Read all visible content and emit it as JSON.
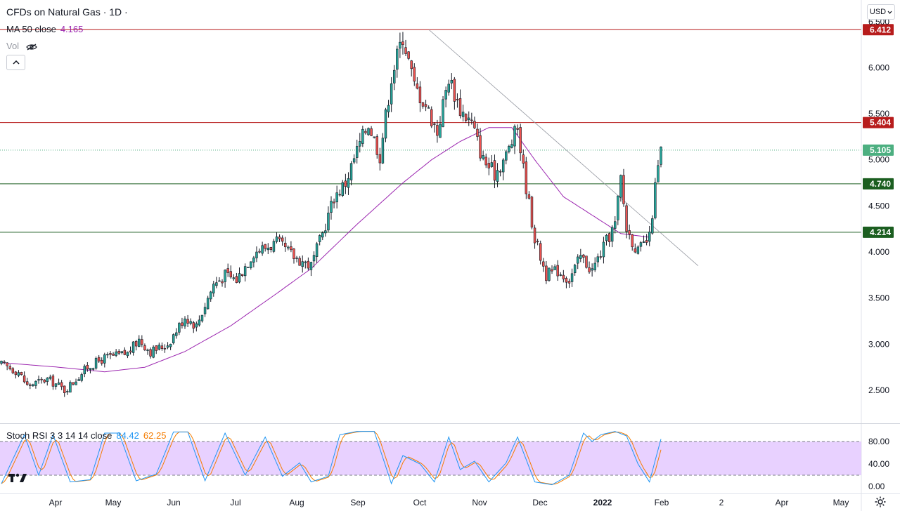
{
  "header": {
    "title": "CFDs on Natural Gas · 1D ·",
    "ma_label": "MA 50 close",
    "ma_value": "4.165",
    "vol_label": "Vol"
  },
  "currency": "USD",
  "price_axis": {
    "ticks": [
      "6.500",
      "6.000",
      "5.500",
      "5.000",
      "4.500",
      "4.000",
      "3.500",
      "3.000",
      "2.500"
    ],
    "range": [
      2.18,
      6.62
    ]
  },
  "horizontal_levels": [
    {
      "value": 6.412,
      "label": "6.412",
      "color": "#b71c1c"
    },
    {
      "value": 5.404,
      "label": "5.404",
      "color": "#b71c1c"
    },
    {
      "value": 4.74,
      "label": "4.740",
      "color": "#1b5e20"
    },
    {
      "value": 4.214,
      "label": "4.214",
      "color": "#1b5e20"
    }
  ],
  "last_price": {
    "value": 5.105,
    "label": "5.105",
    "color": "#4caf80"
  },
  "trendline": {
    "from": [
      6.412,
      "Oct"
    ],
    "to": [
      3.85,
      "Feb"
    ]
  },
  "time_axis": {
    "labels": [
      "Apr",
      "May",
      "Jun",
      "Jul",
      "Aug",
      "Sep",
      "Oct",
      "Nov",
      "Dec",
      "2022",
      "Feb",
      "2",
      "Apr",
      "May"
    ]
  },
  "chart_data": {
    "type": "candlestick",
    "symbol": "CFDs on Natural Gas",
    "interval": "1D",
    "close_path_waypoints": [
      [
        0,
        2.78
      ],
      [
        6,
        2.7
      ],
      [
        9,
        2.55
      ],
      [
        12,
        2.58
      ],
      [
        16,
        2.62
      ],
      [
        20,
        2.55
      ],
      [
        22,
        2.5
      ],
      [
        26,
        2.62
      ],
      [
        30,
        2.75
      ],
      [
        36,
        2.85
      ],
      [
        44,
        2.9
      ],
      [
        48,
        3.05
      ],
      [
        52,
        2.92
      ],
      [
        58,
        3.0
      ],
      [
        64,
        3.3
      ],
      [
        68,
        3.2
      ],
      [
        74,
        3.65
      ],
      [
        78,
        3.75
      ],
      [
        82,
        3.7
      ],
      [
        88,
        4.0
      ],
      [
        96,
        4.1
      ],
      [
        102,
        3.95
      ],
      [
        108,
        3.85
      ],
      [
        112,
        4.2
      ],
      [
        116,
        4.6
      ],
      [
        120,
        4.75
      ],
      [
        124,
        5.1
      ],
      [
        128,
        5.4
      ],
      [
        132,
        5.05
      ],
      [
        136,
        5.9
      ],
      [
        140,
        6.35
      ],
      [
        144,
        5.8
      ],
      [
        148,
        5.6
      ],
      [
        152,
        5.3
      ],
      [
        156,
        5.9
      ],
      [
        160,
        5.55
      ],
      [
        164,
        5.4
      ],
      [
        168,
        5.0
      ],
      [
        172,
        4.85
      ],
      [
        176,
        5.05
      ],
      [
        180,
        5.35
      ],
      [
        182,
        4.9
      ],
      [
        186,
        4.15
      ],
      [
        190,
        3.75
      ],
      [
        194,
        3.8
      ],
      [
        198,
        3.7
      ],
      [
        202,
        3.95
      ],
      [
        206,
        3.8
      ],
      [
        210,
        4.05
      ],
      [
        214,
        4.3
      ],
      [
        216,
        4.8
      ],
      [
        218,
        4.25
      ],
      [
        222,
        4.0
      ],
      [
        226,
        4.15
      ],
      [
        228,
        4.7
      ],
      [
        230,
        5.1
      ]
    ],
    "ma50_waypoints": [
      [
        0,
        2.8
      ],
      [
        20,
        2.75
      ],
      [
        36,
        2.7
      ],
      [
        50,
        2.75
      ],
      [
        64,
        2.92
      ],
      [
        80,
        3.2
      ],
      [
        96,
        3.55
      ],
      [
        108,
        3.82
      ],
      [
        124,
        4.3
      ],
      [
        140,
        4.75
      ],
      [
        150,
        5.0
      ],
      [
        160,
        5.2
      ],
      [
        170,
        5.35
      ],
      [
        178,
        5.35
      ],
      [
        186,
        5.0
      ],
      [
        196,
        4.6
      ],
      [
        206,
        4.4
      ],
      [
        216,
        4.2
      ],
      [
        226,
        4.16
      ]
    ],
    "total_bars": 231,
    "indicator": {
      "name": "Stoch RSI",
      "params": "3 3 14 14 close",
      "k_value": "84.42",
      "d_value": "62.25",
      "band_upper": 80,
      "band_lower": 20,
      "ticks": [
        "80.00",
        "40.00",
        "0.00"
      ],
      "k_waypoints": [
        [
          0,
          5
        ],
        [
          8,
          92
        ],
        [
          13,
          20
        ],
        [
          18,
          92
        ],
        [
          24,
          8
        ],
        [
          31,
          12
        ],
        [
          36,
          95
        ],
        [
          41,
          95
        ],
        [
          47,
          10
        ],
        [
          54,
          22
        ],
        [
          60,
          97
        ],
        [
          65,
          97
        ],
        [
          71,
          10
        ],
        [
          78,
          95
        ],
        [
          85,
          20
        ],
        [
          92,
          88
        ],
        [
          98,
          18
        ],
        [
          104,
          42
        ],
        [
          108,
          8
        ],
        [
          114,
          18
        ],
        [
          118,
          92
        ],
        [
          124,
          98
        ],
        [
          130,
          98
        ],
        [
          136,
          5
        ],
        [
          140,
          55
        ],
        [
          146,
          40
        ],
        [
          151,
          8
        ],
        [
          156,
          88
        ],
        [
          160,
          30
        ],
        [
          165,
          45
        ],
        [
          170,
          8
        ],
        [
          176,
          42
        ],
        [
          180,
          88
        ],
        [
          186,
          8
        ],
        [
          192,
          3
        ],
        [
          198,
          20
        ],
        [
          203,
          95
        ],
        [
          206,
          80
        ],
        [
          209,
          92
        ],
        [
          214,
          98
        ],
        [
          218,
          90
        ],
        [
          222,
          40
        ],
        [
          226,
          8
        ],
        [
          230,
          84.42
        ]
      ]
    }
  },
  "colors": {
    "up": "#26a69a",
    "down": "#ef5350",
    "ma": "#9c27b0",
    "stoch_k": "#2196f3",
    "stoch_d": "#f57c00",
    "stoch_band": "#e6ccff"
  },
  "icons": {
    "eye": "eye-off-icon",
    "collapse": "chevron-up-icon",
    "settings": "gear-icon",
    "logo": "tradingview-logo"
  }
}
